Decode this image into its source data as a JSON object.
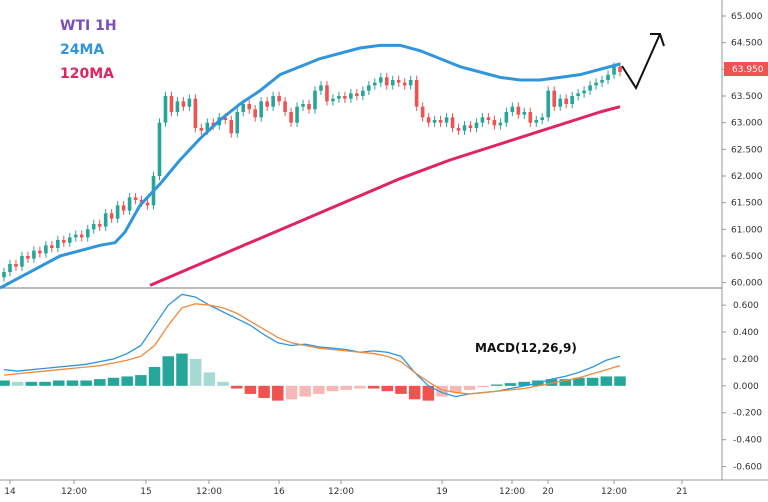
{
  "legend": {
    "symbol": "WTI 1H",
    "ma_short": "24MA",
    "ma_long": "120MA"
  },
  "macd_label": "MACD(12,26,9)",
  "last_price_label": "63.950",
  "colors": {
    "up": "#26a69a",
    "down": "#ef5350",
    "ma_short": "#2f95dc",
    "ma_long": "#e0245e",
    "macd_line": "#2f95dc",
    "signal_line": "#f08a3c",
    "hist_up_strong": "#26a69a",
    "hist_up_weak": "#a5d9d3",
    "hist_down_strong": "#ef5350",
    "hist_down_weak": "#f7b7b6",
    "symbol_color": "#7b4fb8"
  },
  "chart_data": [
    {
      "type": "candlestick",
      "title": "WTI 1H",
      "ylim": [
        59.9,
        65.3
      ],
      "yticks": [
        "65.000",
        "64.500",
        "64.000",
        "63.500",
        "63.000",
        "62.500",
        "62.000",
        "61.500",
        "61.000",
        "60.500",
        "60.000"
      ],
      "xticks": [
        "14",
        "12:00",
        "15",
        "12:00",
        "16",
        "12:00",
        "19",
        "12:00",
        "20",
        "12:00",
        "21"
      ],
      "close": [
        60.2,
        60.35,
        60.3,
        60.5,
        60.45,
        60.6,
        60.55,
        60.7,
        60.65,
        60.8,
        60.75,
        60.85,
        60.9,
        60.85,
        61.0,
        61.1,
        61.05,
        61.3,
        61.2,
        61.45,
        61.35,
        61.6,
        61.55,
        61.5,
        61.45,
        62.0,
        63.0,
        63.5,
        63.2,
        63.4,
        63.3,
        63.45,
        62.9,
        62.85,
        63.0,
        62.95,
        63.1,
        63.05,
        62.8,
        63.2,
        63.35,
        63.25,
        63.1,
        63.4,
        63.3,
        63.5,
        63.4,
        63.2,
        63.0,
        63.3,
        63.35,
        63.25,
        63.6,
        63.7,
        63.4,
        63.45,
        63.5,
        63.45,
        63.55,
        63.5,
        63.6,
        63.7,
        63.75,
        63.85,
        63.7,
        63.8,
        63.75,
        63.7,
        63.8,
        63.3,
        63.1,
        63.0,
        63.05,
        63.0,
        63.1,
        62.9,
        62.85,
        62.95,
        62.9,
        63.0,
        63.1,
        63.05,
        62.95,
        63.0,
        63.2,
        63.3,
        63.15,
        63.2,
        63.0,
        63.05,
        63.1,
        63.6,
        63.3,
        63.45,
        63.35,
        63.5,
        63.55,
        63.6,
        63.7,
        63.75,
        63.8,
        63.9,
        64.05,
        63.95
      ],
      "ma_24_samples": [
        [
          0,
          59.9
        ],
        [
          20,
          60.1
        ],
        [
          40,
          60.3
        ],
        [
          60,
          60.5
        ],
        [
          80,
          60.6
        ],
        [
          100,
          60.7
        ],
        [
          115,
          60.75
        ],
        [
          125,
          60.95
        ],
        [
          140,
          61.45
        ],
        [
          160,
          61.85
        ],
        [
          180,
          62.3
        ],
        [
          200,
          62.7
        ],
        [
          220,
          63.05
        ],
        [
          240,
          63.35
        ],
        [
          260,
          63.6
        ],
        [
          280,
          63.9
        ],
        [
          300,
          64.05
        ],
        [
          320,
          64.2
        ],
        [
          340,
          64.3
        ],
        [
          360,
          64.4
        ],
        [
          380,
          64.45
        ],
        [
          400,
          64.45
        ],
        [
          420,
          64.35
        ],
        [
          440,
          64.2
        ],
        [
          460,
          64.05
        ],
        [
          480,
          63.95
        ],
        [
          500,
          63.85
        ],
        [
          520,
          63.8
        ],
        [
          540,
          63.8
        ],
        [
          560,
          63.85
        ],
        [
          580,
          63.9
        ],
        [
          600,
          64.0
        ],
        [
          620,
          64.1
        ]
      ],
      "ma_120_samples": [
        [
          150,
          59.95
        ],
        [
          200,
          60.35
        ],
        [
          250,
          60.75
        ],
        [
          300,
          61.15
        ],
        [
          350,
          61.55
        ],
        [
          400,
          61.95
        ],
        [
          450,
          62.3
        ],
        [
          500,
          62.6
        ],
        [
          550,
          62.9
        ],
        [
          600,
          63.2
        ],
        [
          620,
          63.3
        ]
      ]
    },
    {
      "type": "macd",
      "title": "MACD(12,26,9)",
      "ylim": [
        -0.7,
        0.72
      ],
      "yticks": [
        "0.600",
        "0.400",
        "0.200",
        "0.000",
        "-0.200",
        "-0.400",
        "-0.600"
      ],
      "macd_line": [
        0.12,
        0.11,
        0.12,
        0.13,
        0.14,
        0.15,
        0.16,
        0.18,
        0.2,
        0.24,
        0.3,
        0.45,
        0.6,
        0.68,
        0.66,
        0.6,
        0.55,
        0.5,
        0.45,
        0.38,
        0.32,
        0.3,
        0.31,
        0.29,
        0.28,
        0.27,
        0.25,
        0.26,
        0.25,
        0.22,
        0.1,
        0.0,
        -0.05,
        -0.08,
        -0.06,
        -0.05,
        -0.04,
        -0.02,
        0.0,
        0.02,
        0.05,
        0.07,
        0.1,
        0.14,
        0.19,
        0.22
      ],
      "signal_line": [
        0.08,
        0.09,
        0.1,
        0.11,
        0.12,
        0.13,
        0.14,
        0.15,
        0.17,
        0.19,
        0.22,
        0.3,
        0.45,
        0.58,
        0.61,
        0.6,
        0.58,
        0.54,
        0.48,
        0.42,
        0.36,
        0.32,
        0.3,
        0.28,
        0.27,
        0.26,
        0.25,
        0.24,
        0.22,
        0.18,
        0.1,
        0.03,
        -0.03,
        -0.05,
        -0.06,
        -0.05,
        -0.04,
        -0.03,
        -0.02,
        0.0,
        0.02,
        0.04,
        0.06,
        0.09,
        0.12,
        0.15
      ],
      "histogram": [
        0.04,
        0.03,
        0.03,
        0.03,
        0.04,
        0.04,
        0.04,
        0.05,
        0.06,
        0.07,
        0.08,
        0.14,
        0.22,
        0.24,
        0.2,
        0.1,
        0.03,
        -0.02,
        -0.06,
        -0.09,
        -0.11,
        -0.1,
        -0.08,
        -0.06,
        -0.04,
        -0.03,
        -0.02,
        -0.02,
        -0.04,
        -0.06,
        -0.1,
        -0.11,
        -0.08,
        -0.05,
        -0.03,
        -0.01,
        0.01,
        0.02,
        0.03,
        0.04,
        0.05,
        0.05,
        0.06,
        0.06,
        0.07,
        0.07
      ]
    }
  ]
}
